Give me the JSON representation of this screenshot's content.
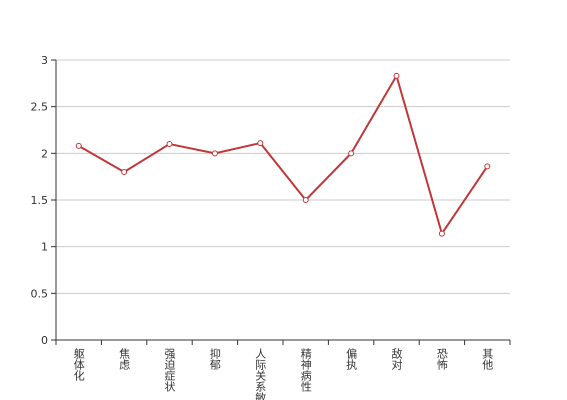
{
  "chart_data": {
    "type": "line",
    "categories": [
      "躯体化",
      "焦虑",
      "强迫症状",
      "抑郁",
      "人际关系敏感",
      "精神病性",
      "偏执",
      "敌对",
      "恐怖",
      "其他"
    ],
    "series": [
      {
        "color": "#c0373a",
        "values": [
          2.08,
          1.8,
          2.1,
          2.0,
          2.11,
          1.5,
          2.0,
          2.83,
          1.14,
          1.86
        ]
      }
    ],
    "ylim": [
      0,
      3
    ],
    "yticks": [
      0,
      0.5,
      1,
      1.5,
      2,
      2.5,
      3
    ],
    "grid": true
  }
}
